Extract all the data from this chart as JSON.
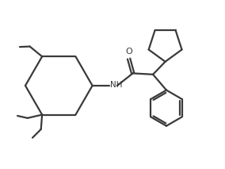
{
  "background_color": "#ffffff",
  "line_color": "#3a3a3a",
  "line_width": 1.6,
  "figsize": [
    2.84,
    2.13
  ],
  "dpi": 100,
  "xlim": [
    0,
    10
  ],
  "ylim": [
    0,
    7.5
  ]
}
